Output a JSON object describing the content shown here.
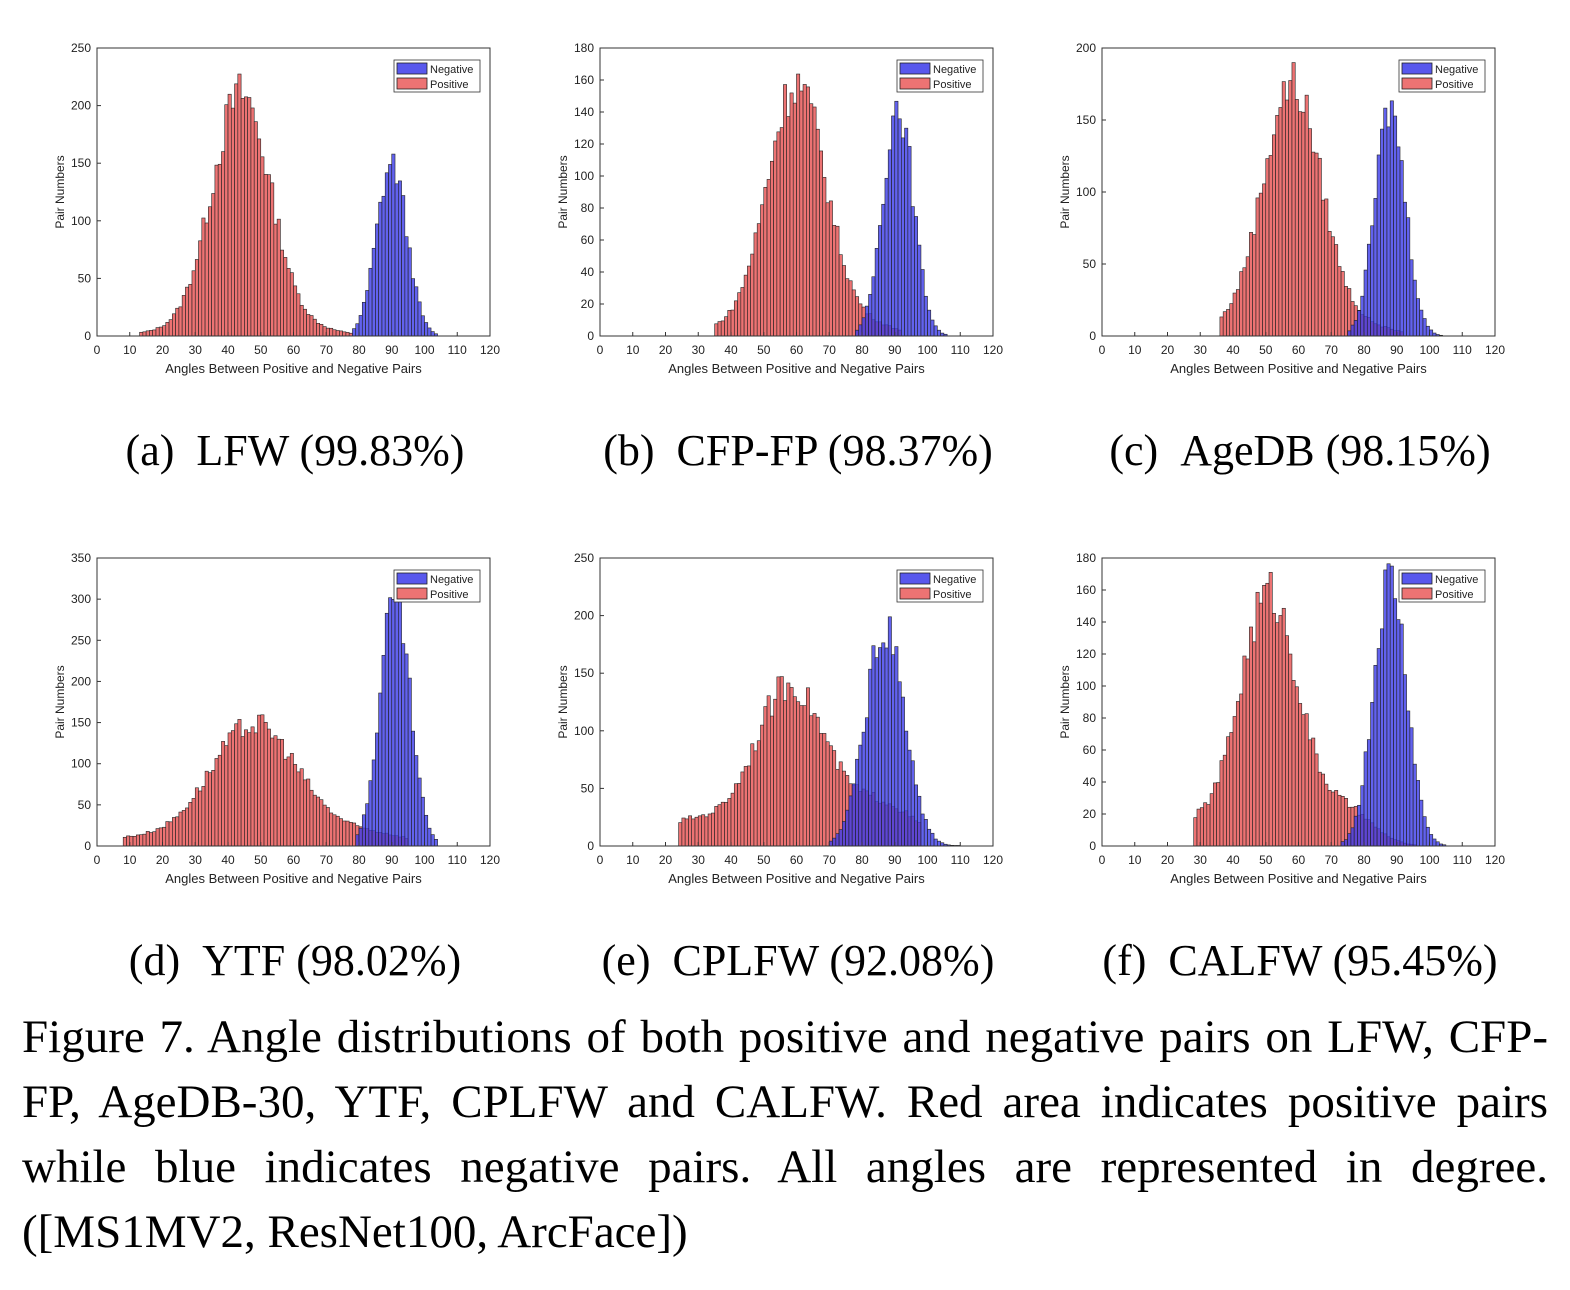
{
  "colors": {
    "negative": "#3b3bea",
    "positive": "#ea5b5b",
    "overlap": "#9a2333"
  },
  "chart_data": [
    {
      "type": "bar",
      "subcaption": {
        "tag": "(a)",
        "title": "LFW (99.83%)"
      },
      "xlabel": "Angles Between Positive and Negative Pairs",
      "ylabel": "Pair Numbers",
      "xlim": [
        0,
        120
      ],
      "xticks": [
        0,
        10,
        20,
        30,
        40,
        50,
        60,
        70,
        80,
        90,
        100,
        110,
        120
      ],
      "ylim": [
        0,
        250
      ],
      "yticks": [
        0,
        50,
        100,
        150,
        200,
        250
      ],
      "legend": {
        "placement": "top-right",
        "entries": [
          "Negative",
          "Positive"
        ]
      },
      "series": [
        {
          "name": "Negative",
          "mean": 90,
          "sd": 4.6,
          "peak": 150,
          "range": [
            78,
            104
          ]
        },
        {
          "name": "Positive",
          "mean": 44,
          "sd": 9.0,
          "peak": 210,
          "range": [
            13,
            78
          ],
          "tail": 5
        }
      ]
    },
    {
      "type": "bar",
      "subcaption": {
        "tag": "(b)",
        "title": "CFP-FP (98.37%)"
      },
      "xlabel": "Angles Between Positive and Negative Pairs",
      "ylabel": "Pair Numbers",
      "xlim": [
        0,
        120
      ],
      "xticks": [
        0,
        10,
        20,
        30,
        40,
        50,
        60,
        70,
        80,
        90,
        100,
        110,
        120
      ],
      "ylim": [
        0,
        180
      ],
      "yticks": [
        0,
        20,
        40,
        60,
        80,
        100,
        120,
        140,
        160,
        180
      ],
      "legend": {
        "placement": "top-right",
        "entries": [
          "Negative",
          "Positive"
        ]
      },
      "series": [
        {
          "name": "Negative",
          "mean": 91,
          "sd": 4.6,
          "peak": 145,
          "range": [
            78,
            106
          ]
        },
        {
          "name": "Positive",
          "mean": 60,
          "sd": 9.0,
          "peak": 158,
          "range": [
            35,
            92
          ],
          "tail": 6
        }
      ]
    },
    {
      "type": "bar",
      "subcaption": {
        "tag": "(c)",
        "title": "AgeDB (98.15%)"
      },
      "xlabel": "Angles Between Positive and Negative Pairs",
      "ylabel": "Pair Numbers",
      "xlim": [
        0,
        120
      ],
      "xticks": [
        0,
        10,
        20,
        30,
        40,
        50,
        60,
        70,
        80,
        90,
        100,
        110,
        120
      ],
      "ylim": [
        0,
        200
      ],
      "yticks": [
        0,
        50,
        100,
        150,
        200
      ],
      "legend": {
        "placement": "top-right",
        "entries": [
          "Negative",
          "Positive"
        ]
      },
      "series": [
        {
          "name": "Negative",
          "mean": 88,
          "sd": 4.6,
          "peak": 158,
          "range": [
            75,
            104
          ]
        },
        {
          "name": "Positive",
          "mean": 58,
          "sd": 9.0,
          "peak": 175,
          "range": [
            36,
            92
          ],
          "tail": 6
        }
      ]
    },
    {
      "type": "bar",
      "subcaption": {
        "tag": "(d)",
        "title": "YTF (98.02%)"
      },
      "xlabel": "Angles Between Positive and Negative Pairs",
      "ylabel": "Pair Numbers",
      "xlim": [
        0,
        120
      ],
      "xticks": [
        0,
        10,
        20,
        30,
        40,
        50,
        60,
        70,
        80,
        90,
        100,
        110,
        120
      ],
      "ylim": [
        0,
        350
      ],
      "yticks": [
        0,
        50,
        100,
        150,
        200,
        250,
        300,
        350
      ],
      "legend": {
        "placement": "top-right",
        "entries": [
          "Negative",
          "Positive"
        ]
      },
      "series": [
        {
          "name": "Negative",
          "mean": 91,
          "sd": 4.6,
          "peak": 300,
          "range": [
            79,
            104
          ]
        },
        {
          "name": "Positive",
          "mean": 48,
          "sd": 13.5,
          "peak": 148,
          "range": [
            8,
            95
          ],
          "tail": 15
        }
      ]
    },
    {
      "type": "bar",
      "subcaption": {
        "tag": "(e)",
        "title": "CPLFW (92.08%)"
      },
      "xlabel": "Angles Between Positive and Negative Pairs",
      "ylabel": "Pair Numbers",
      "xlim": [
        0,
        120
      ],
      "xticks": [
        0,
        10,
        20,
        30,
        40,
        50,
        60,
        70,
        80,
        90,
        100,
        110,
        120
      ],
      "ylim": [
        0,
        250
      ],
      "yticks": [
        0,
        50,
        100,
        150,
        200,
        250
      ],
      "legend": {
        "placement": "top-right",
        "entries": [
          "Negative",
          "Positive"
        ]
      },
      "series": [
        {
          "name": "Negative",
          "mean": 87,
          "sd": 6.0,
          "peak": 188,
          "range": [
            70,
            110
          ]
        },
        {
          "name": "Positive",
          "mean": 58,
          "sd": 11.0,
          "peak": 140,
          "range": [
            24,
            98
          ],
          "tail": 35
        }
      ]
    },
    {
      "type": "bar",
      "subcaption": {
        "tag": "(f)",
        "title": "CALFW (95.45%)"
      },
      "xlabel": "Angles Between Positive and Negative Pairs",
      "ylabel": "Pair Numbers",
      "xlim": [
        0,
        120
      ],
      "xticks": [
        0,
        10,
        20,
        30,
        40,
        50,
        60,
        70,
        80,
        90,
        100,
        110,
        120
      ],
      "ylim": [
        0,
        180
      ],
      "yticks": [
        0,
        20,
        40,
        60,
        80,
        100,
        120,
        140,
        160,
        180
      ],
      "legend": {
        "placement": "top-right",
        "entries": [
          "Negative",
          "Positive"
        ]
      },
      "series": [
        {
          "name": "Negative",
          "mean": 88,
          "sd": 5.0,
          "peak": 168,
          "range": [
            73,
            105
          ]
        },
        {
          "name": "Positive",
          "mean": 51,
          "sd": 9.0,
          "peak": 158,
          "range": [
            28,
            96
          ],
          "tail": 22
        }
      ]
    }
  ],
  "caption": "Figure 7. Angle distributions of both positive and negative pairs on LFW, CFP-FP, AgeDB-30, YTF, CPLFW and CALFW. Red area indicates positive pairs while blue indicates negative pairs. All angles are represented in degree. ([MS1MV2, ResNet100, ArcFace])"
}
